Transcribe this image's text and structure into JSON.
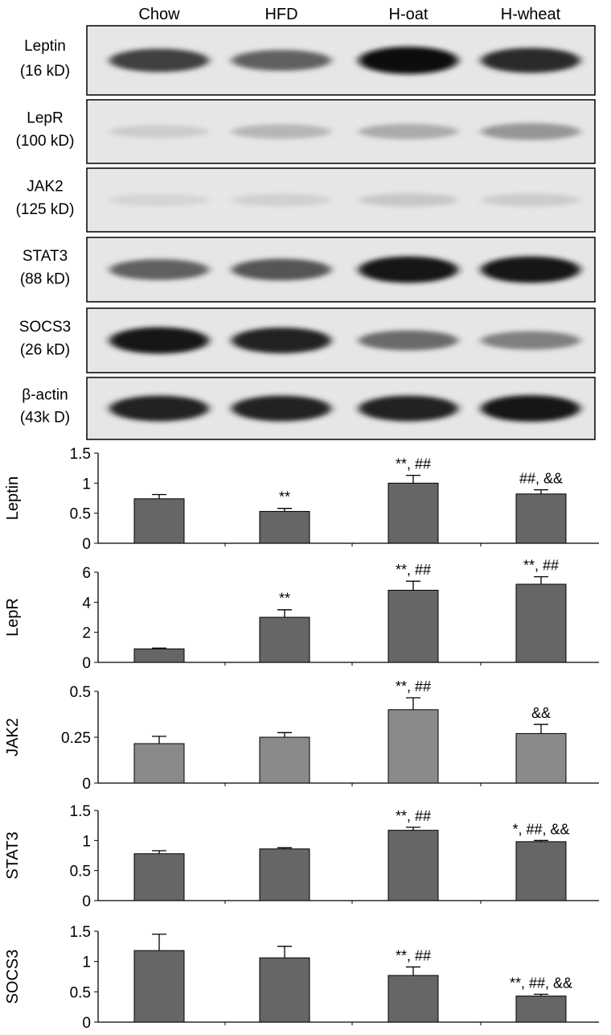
{
  "groups": [
    "Chow",
    "HFD",
    "H-oat",
    "H-wheat"
  ],
  "blots": [
    {
      "name": "Leptin",
      "size": "(16 kD)",
      "intensity": [
        0.75,
        0.6,
        1.0,
        0.85
      ]
    },
    {
      "name": "LepR",
      "size": "(100 kD)",
      "intensity": [
        0.1,
        0.2,
        0.25,
        0.35
      ]
    },
    {
      "name": "JAK2",
      "size": "(125 kD)",
      "intensity": [
        0.06,
        0.08,
        0.12,
        0.1
      ]
    },
    {
      "name": "STAT3",
      "size": "(88 kD)",
      "intensity": [
        0.6,
        0.65,
        0.95,
        0.95
      ]
    },
    {
      "name": "SOCS3",
      "size": "(26 kD)",
      "intensity": [
        0.95,
        0.9,
        0.55,
        0.45
      ]
    },
    {
      "name": "β-actin",
      "size": "(43k D)",
      "intensity": [
        0.9,
        0.9,
        0.9,
        0.95
      ]
    }
  ],
  "chart_data": [
    {
      "type": "bar",
      "ylabel": "Leptin",
      "ylim": [
        0,
        1.5
      ],
      "yticks": [
        "0",
        "0.5",
        "1",
        "1.5"
      ],
      "categories": [
        "Chow",
        "HFD",
        "H-oat",
        "H-wheat"
      ],
      "values": [
        0.74,
        0.53,
        1.0,
        0.82
      ],
      "errors": [
        0.07,
        0.05,
        0.13,
        0.07
      ],
      "annotations": [
        "",
        "**",
        "**, ##",
        "##, &&"
      ],
      "bar_color": "#666666"
    },
    {
      "type": "bar",
      "ylabel": "LepR",
      "ylim": [
        0,
        6
      ],
      "yticks": [
        "0",
        "2",
        "4",
        "6"
      ],
      "categories": [
        "Chow",
        "HFD",
        "H-oat",
        "H-wheat"
      ],
      "values": [
        0.9,
        3.0,
        4.8,
        5.2
      ],
      "errors": [
        0.05,
        0.5,
        0.6,
        0.5
      ],
      "annotations": [
        "",
        "**",
        "**, ##",
        "**, ##"
      ],
      "bar_color": "#666666"
    },
    {
      "type": "bar",
      "ylabel": "JAK2",
      "ylim": [
        0,
        0.5
      ],
      "yticks": [
        "0",
        "0.25",
        "0.5"
      ],
      "categories": [
        "Chow",
        "HFD",
        "H-oat",
        "H-wheat"
      ],
      "values": [
        0.215,
        0.25,
        0.4,
        0.27
      ],
      "errors": [
        0.04,
        0.025,
        0.065,
        0.05
      ],
      "annotations": [
        "",
        "",
        "**, ##",
        "&&"
      ],
      "bar_color": "#8a8a8a"
    },
    {
      "type": "bar",
      "ylabel": "STAT3",
      "ylim": [
        0,
        1.5
      ],
      "yticks": [
        "0",
        "0.5",
        "1",
        "1.5"
      ],
      "categories": [
        "Chow",
        "HFD",
        "H-oat",
        "H-wheat"
      ],
      "values": [
        0.78,
        0.86,
        1.17,
        0.98
      ],
      "errors": [
        0.05,
        0.02,
        0.05,
        0.02
      ],
      "annotations": [
        "",
        "",
        "**, ##",
        "*, ##, &&"
      ],
      "bar_color": "#666666"
    },
    {
      "type": "bar",
      "ylabel": "SOCS3",
      "ylim": [
        0,
        1.5
      ],
      "yticks": [
        "0",
        "0.5",
        "1",
        "1.5"
      ],
      "categories": [
        "Chow",
        "HFD",
        "H-oat",
        "H-wheat"
      ],
      "values": [
        1.18,
        1.06,
        0.77,
        0.43
      ],
      "errors": [
        0.27,
        0.19,
        0.14,
        0.03
      ],
      "annotations": [
        "",
        "",
        "**, ##",
        "**, ##, &&"
      ],
      "bar_color": "#666666"
    }
  ]
}
